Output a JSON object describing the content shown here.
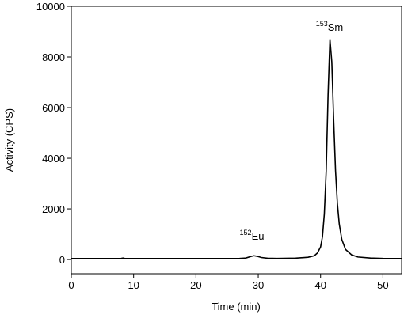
{
  "chart_data": {
    "type": "line",
    "x_label": "Time (min)",
    "y_label": "Activity (CPS)",
    "annotations": [
      {
        "sup": "152",
        "text": "Eu"
      },
      {
        "sup": "153",
        "text": "Sm"
      }
    ],
    "x": [
      0,
      5,
      8,
      8.3,
      8.6,
      15,
      20,
      25,
      27,
      28,
      28.8,
      29.3,
      29.8,
      30.5,
      31.5,
      33,
      36,
      38,
      39,
      39.5,
      40,
      40.3,
      40.6,
      40.9,
      41.2,
      41.5,
      41.8,
      42.1,
      42.4,
      42.7,
      43,
      43.4,
      44,
      45,
      46,
      48,
      50,
      53
    ],
    "series": [
      {
        "color": "#000000",
        "values": [
          40,
          40,
          45,
          60,
          40,
          40,
          40,
          40,
          45,
          60,
          120,
          150,
          130,
          80,
          50,
          45,
          55,
          90,
          150,
          260,
          500,
          900,
          1800,
          3500,
          6500,
          8700,
          7800,
          5500,
          3500,
          2200,
          1400,
          800,
          400,
          180,
          100,
          60,
          45,
          40
        ]
      }
    ],
    "xlim": [
      0,
      53
    ],
    "xticks": [
      0,
      10,
      20,
      30,
      40,
      50
    ],
    "ylim": [
      -560,
      10000
    ],
    "yticks": [
      0,
      2000,
      4000,
      6000,
      8000,
      10000
    ]
  }
}
